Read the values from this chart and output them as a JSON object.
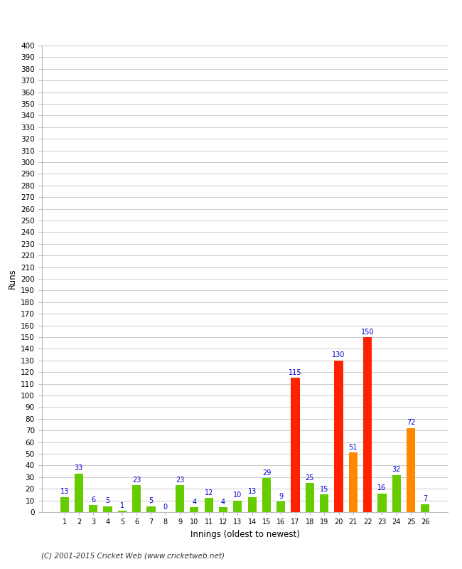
{
  "innings": [
    1,
    2,
    3,
    4,
    5,
    6,
    7,
    8,
    9,
    10,
    11,
    12,
    13,
    14,
    15,
    16,
    17,
    18,
    19,
    20,
    21,
    22,
    23,
    24,
    25,
    26
  ],
  "values": [
    13,
    33,
    6,
    5,
    1,
    23,
    5,
    0,
    23,
    4,
    12,
    4,
    10,
    13,
    29,
    9,
    115,
    25,
    15,
    130,
    51,
    150,
    16,
    32,
    72,
    7
  ],
  "colors": [
    "#66cc00",
    "#66cc00",
    "#66cc00",
    "#66cc00",
    "#66cc00",
    "#66cc00",
    "#66cc00",
    "#66cc00",
    "#66cc00",
    "#66cc00",
    "#66cc00",
    "#66cc00",
    "#66cc00",
    "#66cc00",
    "#66cc00",
    "#66cc00",
    "#ff2200",
    "#66cc00",
    "#66cc00",
    "#ff2200",
    "#ff8800",
    "#ff2200",
    "#66cc00",
    "#66cc00",
    "#ff8800",
    "#66cc00"
  ],
  "xlabel": "Innings (oldest to newest)",
  "ylabel": "Runs",
  "ylim": [
    0,
    400
  ],
  "yticks": [
    0,
    10,
    20,
    30,
    40,
    50,
    60,
    70,
    80,
    90,
    100,
    110,
    120,
    130,
    140,
    150,
    160,
    170,
    180,
    190,
    200,
    210,
    220,
    230,
    240,
    250,
    260,
    270,
    280,
    290,
    300,
    310,
    320,
    330,
    340,
    350,
    360,
    370,
    380,
    390,
    400
  ],
  "label_color": "#0000cc",
  "footer": "(C) 2001-2015 Cricket Web (www.cricketweb.net)",
  "background_color": "#ffffff",
  "grid_color": "#cccccc",
  "bar_width": 0.6
}
